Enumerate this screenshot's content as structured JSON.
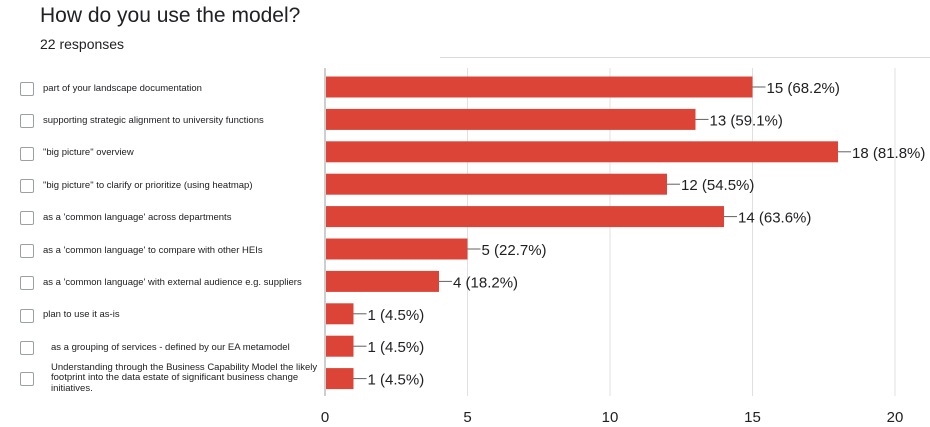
{
  "header": {
    "question": "How do you use the model?",
    "responses": "22 responses"
  },
  "chart_data": {
    "type": "bar",
    "orientation": "horizontal",
    "categories": [
      "part of your landscape documentation",
      "supporting strategic alignment to university functions",
      "\"big picture\" overview",
      "\"big picture\" to clarify or prioritize (using heatmap)",
      "as a 'common language' across departments",
      "as a 'common language' to compare with other HEIs",
      "as a 'common language' with external audience e.g. suppliers",
      "plan to use it as-is",
      "as a grouping of services - defined by our EA metamodel",
      "Understanding through the Business Capability Model the likely footprint into the data estate of significant business change initiatives."
    ],
    "values": [
      15,
      13,
      18,
      12,
      14,
      5,
      4,
      1,
      1,
      1
    ],
    "data_labels": [
      "15 (68.2%)",
      "13 (59.1%)",
      "18 (81.8%)",
      "12 (54.5%)",
      "14 (63.6%)",
      "5 (22.7%)",
      "4 (18.2%)",
      "1 (4.5%)",
      "1 (4.5%)",
      "1 (4.5%)"
    ],
    "xlim": [
      0,
      20
    ],
    "xticks": [
      "0",
      "5",
      "10",
      "15",
      "20"
    ],
    "bar_color": "#db4437",
    "grid": true
  }
}
